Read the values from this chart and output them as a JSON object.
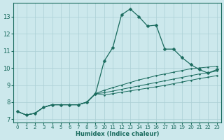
{
  "xlabel": "Humidex (Indice chaleur)",
  "bg_color": "#cce8ec",
  "grid_color": "#aacfd4",
  "line_color": "#1a6b5e",
  "xlim": [
    -0.5,
    23.5
  ],
  "ylim": [
    6.8,
    13.8
  ],
  "yticks": [
    7,
    8,
    9,
    10,
    11,
    12,
    13
  ],
  "xticks": [
    0,
    1,
    2,
    3,
    4,
    5,
    6,
    7,
    8,
    9,
    10,
    11,
    12,
    13,
    14,
    15,
    16,
    17,
    18,
    19,
    20,
    21,
    22,
    23
  ],
  "line1_x": [
    0,
    1,
    2,
    3,
    4,
    5,
    6,
    7,
    8,
    9,
    10,
    11,
    12,
    13,
    14,
    15,
    16,
    17,
    18,
    19,
    20,
    21,
    22,
    23
  ],
  "line1_y": [
    7.45,
    7.25,
    7.35,
    7.7,
    7.85,
    7.85,
    7.85,
    7.85,
    8.0,
    8.5,
    10.4,
    11.2,
    13.1,
    13.45,
    13.0,
    12.45,
    12.5,
    11.1,
    11.1,
    10.6,
    10.2,
    9.9,
    9.7,
    9.9
  ],
  "line2_x": [
    0,
    1,
    2,
    3,
    4,
    5,
    6,
    7,
    8,
    9,
    10,
    11,
    12,
    13,
    14,
    15,
    16,
    17,
    18,
    19,
    20,
    21,
    22,
    23
  ],
  "line2_y": [
    7.45,
    7.25,
    7.35,
    7.7,
    7.85,
    7.85,
    7.85,
    7.85,
    8.0,
    8.5,
    8.7,
    8.85,
    9.0,
    9.15,
    9.3,
    9.42,
    9.55,
    9.65,
    9.75,
    9.85,
    9.95,
    10.0,
    10.05,
    10.1
  ],
  "line3_x": [
    0,
    1,
    2,
    3,
    4,
    5,
    6,
    7,
    8,
    9,
    10,
    11,
    12,
    13,
    14,
    15,
    16,
    17,
    18,
    19,
    20,
    21,
    22,
    23
  ],
  "line3_y": [
    7.45,
    7.25,
    7.35,
    7.7,
    7.85,
    7.85,
    7.85,
    7.85,
    8.0,
    8.5,
    8.55,
    8.65,
    8.75,
    8.85,
    8.95,
    9.05,
    9.15,
    9.25,
    9.35,
    9.45,
    9.55,
    9.65,
    9.72,
    9.82
  ],
  "line4_x": [
    0,
    1,
    2,
    3,
    4,
    5,
    6,
    7,
    8,
    9,
    10,
    11,
    12,
    13,
    14,
    15,
    16,
    17,
    18,
    19,
    20,
    21,
    22,
    23
  ],
  "line4_y": [
    7.45,
    7.25,
    7.35,
    7.7,
    7.85,
    7.85,
    7.85,
    7.85,
    8.0,
    8.5,
    8.42,
    8.5,
    8.58,
    8.66,
    8.74,
    8.82,
    8.9,
    8.98,
    9.08,
    9.18,
    9.28,
    9.38,
    9.46,
    9.55
  ]
}
